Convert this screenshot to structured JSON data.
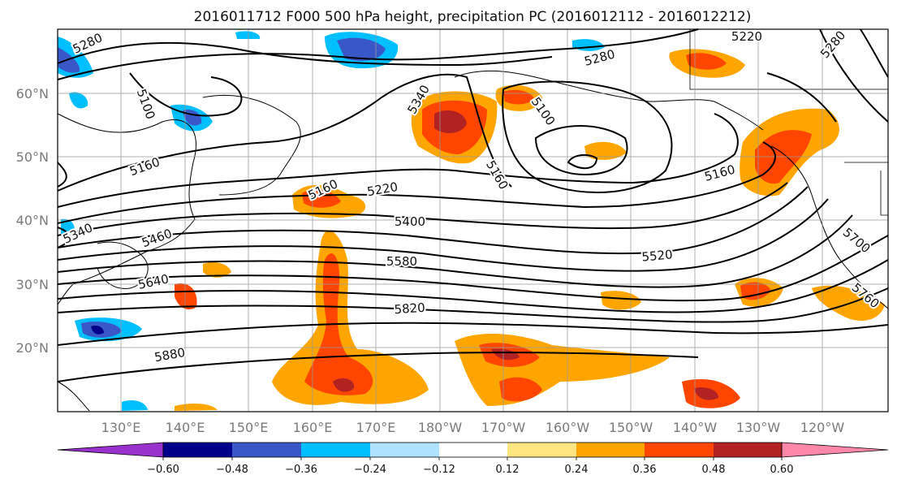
{
  "title": "2016011712 F000 500 hPa height, precipitation PC (2016012112 - 2016012212)",
  "map": {
    "lat_labels": [
      "60°N",
      "50°N",
      "40°N",
      "30°N",
      "20°N"
    ],
    "lon_labels": [
      "130°E",
      "140°E",
      "150°E",
      "160°E",
      "170°E",
      "180°W",
      "170°W",
      "160°W",
      "150°W",
      "140°W",
      "130°W",
      "120°W"
    ],
    "height_contour_labels": [
      "5280",
      "5100",
      "5160",
      "5340",
      "5100",
      "5280",
      "5220",
      "5280",
      "5160",
      "5160",
      "5220",
      "5400",
      "5460",
      "5340",
      "5580",
      "5520",
      "5640",
      "5700",
      "5820",
      "5760",
      "5880"
    ]
  },
  "colorbar": {
    "tick_labels": [
      "−0.60",
      "−0.48",
      "−0.36",
      "−0.24",
      "−0.12",
      "0.12",
      "0.24",
      "0.36",
      "0.48",
      "0.60"
    ],
    "colors": [
      "#9932cc",
      "#00008b",
      "#3a57c8",
      "#00bfff",
      "#aee2ff",
      "#ffffff",
      "#ffe680",
      "#ffa500",
      "#ff4500",
      "#b22222",
      "#ff88aa"
    ]
  }
}
